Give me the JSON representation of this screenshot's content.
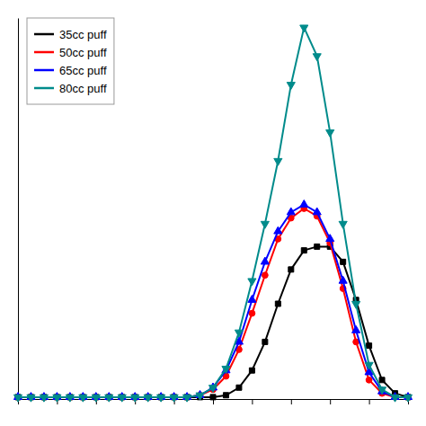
{
  "chart_data": {
    "type": "line",
    "x": [
      0,
      1,
      2,
      3,
      4,
      5,
      6,
      7,
      8,
      9,
      10,
      11,
      12,
      13,
      14,
      15,
      16,
      17,
      18,
      19,
      20,
      21,
      22,
      23,
      24,
      25,
      26,
      27,
      28,
      29,
      30
    ],
    "series": [
      {
        "name": "35cc puff",
        "color": "#000000",
        "marker": "square",
        "values": [
          0.01,
          0.01,
          0.01,
          0.01,
          0.01,
          0.01,
          0.01,
          0.01,
          0.01,
          0.01,
          0.01,
          0.01,
          0.01,
          0.01,
          0.01,
          0.01,
          0.02,
          0.06,
          0.15,
          0.3,
          0.5,
          0.68,
          0.78,
          0.8,
          0.8,
          0.72,
          0.52,
          0.28,
          0.1,
          0.03,
          0.01
        ]
      },
      {
        "name": "50cc puff",
        "color": "#ff0000",
        "marker": "circle",
        "values": [
          0.01,
          0.01,
          0.01,
          0.01,
          0.01,
          0.01,
          0.01,
          0.01,
          0.01,
          0.01,
          0.01,
          0.01,
          0.01,
          0.01,
          0.02,
          0.05,
          0.12,
          0.26,
          0.45,
          0.65,
          0.84,
          0.95,
          1.0,
          0.96,
          0.82,
          0.58,
          0.3,
          0.1,
          0.03,
          0.01,
          0.01
        ]
      },
      {
        "name": "65cc puff",
        "color": "#0000ff",
        "marker": "triangle-up",
        "values": [
          0.01,
          0.01,
          0.01,
          0.01,
          0.01,
          0.01,
          0.01,
          0.01,
          0.01,
          0.01,
          0.01,
          0.01,
          0.01,
          0.01,
          0.02,
          0.06,
          0.15,
          0.3,
          0.52,
          0.72,
          0.88,
          0.98,
          1.02,
          0.98,
          0.84,
          0.62,
          0.36,
          0.14,
          0.04,
          0.01,
          0.01
        ]
      },
      {
        "name": "80cc puff",
        "color": "#008b8b",
        "marker": "triangle-down",
        "values": [
          0.01,
          0.01,
          0.01,
          0.01,
          0.01,
          0.01,
          0.01,
          0.01,
          0.01,
          0.01,
          0.01,
          0.01,
          0.01,
          0.01,
          0.02,
          0.06,
          0.16,
          0.35,
          0.62,
          0.92,
          1.25,
          1.65,
          1.95,
          1.8,
          1.4,
          0.92,
          0.5,
          0.18,
          0.05,
          0.01,
          0.01
        ]
      }
    ],
    "xlim": [
      0,
      30
    ],
    "xticks": [
      0,
      3,
      6,
      9,
      12,
      15,
      18,
      21,
      24,
      27,
      30
    ],
    "ylim": [
      0.0,
      2.0
    ],
    "yticks": [],
    "tick_labels": false,
    "grid": false,
    "legend": "upper left"
  }
}
